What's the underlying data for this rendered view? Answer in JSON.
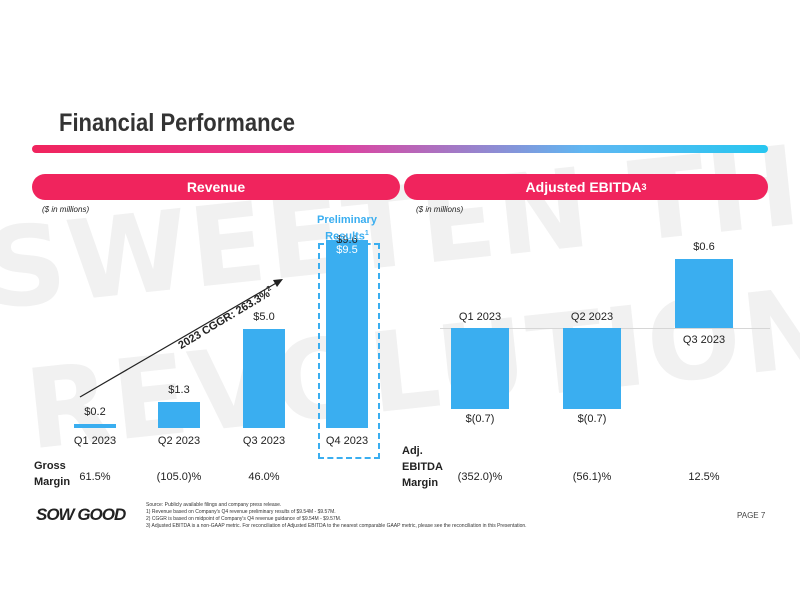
{
  "slide": {
    "title": "Financial Performance",
    "watermark": [
      "SWEETEN THE",
      "REVOLUTION"
    ],
    "brand_colors": {
      "accent": "#f0245d",
      "bar": "#3aaef0"
    }
  },
  "revenue": {
    "header": "Revenue",
    "unit": "($ in millions)",
    "preliminary_note": [
      "Preliminary",
      "Results"
    ],
    "preliminary_sup": "1",
    "cagr_label": "2023 CGGR: 263.3%",
    "cagr_sup": "2",
    "row_label": [
      "Gross",
      "Margin"
    ],
    "chart_data": {
      "type": "bar",
      "title": "Revenue",
      "ylabel": "$ in millions",
      "categories": [
        "Q1 2023",
        "Q2 2023",
        "Q3 2023",
        "Q4 2023"
      ],
      "values": [
        0.2,
        1.3,
        5.0,
        9.5
      ],
      "value_labels": [
        "$0.2",
        "$1.3",
        "$5.0",
        "$9.5"
      ],
      "q4_range_high": 9.6,
      "q4_range_high_label": "$9.6",
      "gross_margin": [
        "61.5%",
        "(105.0)%",
        "46.0%",
        ""
      ]
    }
  },
  "ebitda": {
    "header": "Adjusted EBITDA",
    "header_sup": "3",
    "unit": "($ in millions)",
    "row_label": [
      "Adj.",
      "EBITDA",
      "Margin"
    ],
    "chart_data": {
      "type": "bar",
      "title": "Adjusted EBITDA",
      "ylabel": "$ in millions",
      "categories": [
        "Q1 2023",
        "Q2 2023",
        "Q3 2023"
      ],
      "values": [
        -0.7,
        -0.7,
        0.6
      ],
      "value_labels": [
        "$(0.7)",
        "$(0.7)",
        "$0.6"
      ],
      "ebitda_margin": [
        "(352.0)%",
        "(56.1)%",
        "12.5%"
      ]
    }
  },
  "footer": {
    "logo": "SOW GOOD",
    "page": "PAGE 7",
    "source": "Source: Publicly available filings and company press release.",
    "notes": [
      "1)      Revenue based on Company's Q4 revenue preliminary results of $9.54M - $9.57M.",
      "2)      CGGR is based on midpoint of Company's Q4 revenue guidance of $9.54M - $9.57M.",
      "3)      Adjusted EBITDA is a non-GAAP metric. For reconciliation of Adjusted EBITDA to the nearest comparable GAAP metric, please see the reconciliation in this Presentation."
    ]
  }
}
